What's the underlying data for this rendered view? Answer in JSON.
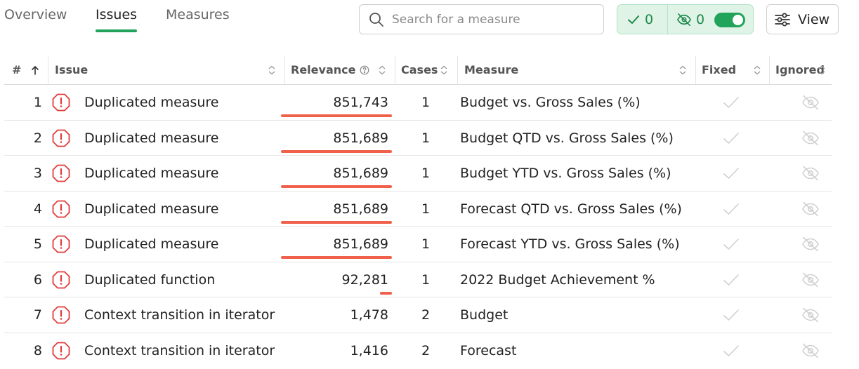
{
  "tabs": [
    {
      "label": "Overview",
      "active": false
    },
    {
      "label": "Issues",
      "active": true
    },
    {
      "label": "Measures",
      "active": false
    }
  ],
  "search": {
    "placeholder": "Search for a measure",
    "value": ""
  },
  "filters": {
    "fixed_count": "0",
    "ignored_count": "0",
    "toggle_on": true
  },
  "view_button": {
    "label": "View"
  },
  "colors": {
    "accent": "#22a35a",
    "relevance_bar": "#f0614b",
    "issue_icon": "#e23b3b"
  },
  "table": {
    "columns": {
      "num": "#",
      "issue": "Issue",
      "relevance": "Relevance",
      "cases": "Cases",
      "measure": "Measure",
      "fixed": "Fixed",
      "ignored": "Ignored"
    },
    "rows": [
      {
        "num": "1",
        "issue": "Duplicated measure",
        "relevance": "851,743",
        "relevance_fraction": 1.0,
        "cases": "1",
        "measure": "Budget vs. Gross Sales (%)"
      },
      {
        "num": "2",
        "issue": "Duplicated measure",
        "relevance": "851,689",
        "relevance_fraction": 1.0,
        "cases": "1",
        "measure": "Budget QTD vs. Gross Sales (%)"
      },
      {
        "num": "3",
        "issue": "Duplicated measure",
        "relevance": "851,689",
        "relevance_fraction": 1.0,
        "cases": "1",
        "measure": "Budget YTD vs. Gross Sales (%)"
      },
      {
        "num": "4",
        "issue": "Duplicated measure",
        "relevance": "851,689",
        "relevance_fraction": 1.0,
        "cases": "1",
        "measure": "Forecast QTD vs. Gross Sales (%)"
      },
      {
        "num": "5",
        "issue": "Duplicated measure",
        "relevance": "851,689",
        "relevance_fraction": 1.0,
        "cases": "1",
        "measure": "Forecast YTD vs. Gross Sales (%)"
      },
      {
        "num": "6",
        "issue": "Duplicated function",
        "relevance": "92,281",
        "relevance_fraction": 0.108,
        "cases": "1",
        "measure": "2022 Budget Achievement %"
      },
      {
        "num": "7",
        "issue": "Context transition in iterator",
        "relevance": "1,478",
        "relevance_fraction": 0.0,
        "cases": "2",
        "measure": "Budget"
      },
      {
        "num": "8",
        "issue": "Context transition in iterator",
        "relevance": "1,416",
        "relevance_fraction": 0.0,
        "cases": "2",
        "measure": "Forecast"
      }
    ]
  }
}
